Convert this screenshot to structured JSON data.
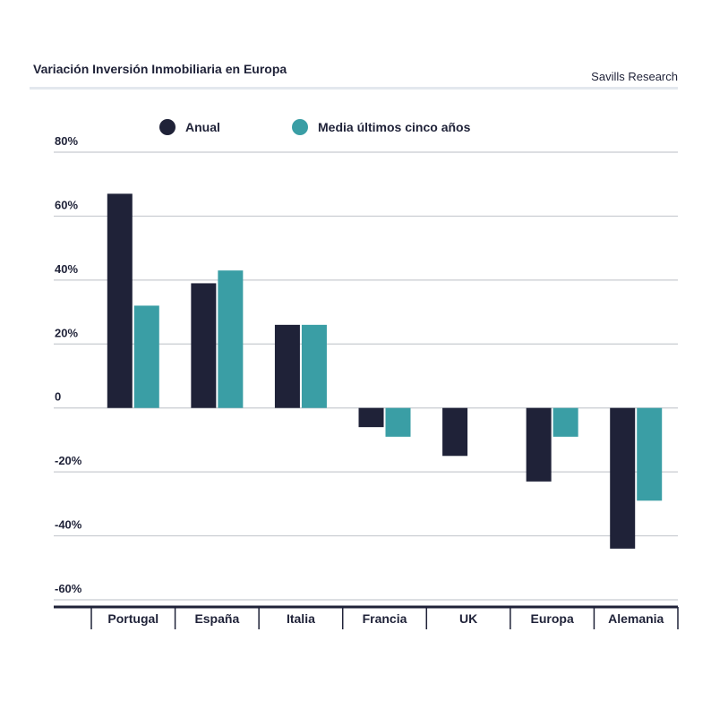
{
  "chart_data": {
    "type": "bar",
    "title": "Variación Inversión Inmobiliaria en Europa",
    "source": "Savills Research",
    "categories": [
      "Portugal",
      "España",
      "Italia",
      "Francia",
      "UK",
      "Europa",
      "Alemania"
    ],
    "series": [
      {
        "name": "Anual",
        "color": "#1f2238",
        "values": [
          67,
          39,
          26,
          -6,
          -15,
          -23,
          -44
        ]
      },
      {
        "name": "Media últimos cinco años",
        "color": "#3a9ea5",
        "values": [
          32,
          43,
          26,
          -9,
          null,
          -9,
          -29
        ]
      }
    ],
    "yticks": [
      80,
      60,
      40,
      20,
      0,
      -20,
      -40,
      -60
    ],
    "ytick_labels": [
      "80%",
      "60%",
      "40%",
      "20%",
      "0",
      "-20%",
      "-40%",
      "-60%"
    ],
    "ylim": [
      -60,
      80
    ],
    "unit": "%",
    "grid": true,
    "legend_position": "top"
  }
}
